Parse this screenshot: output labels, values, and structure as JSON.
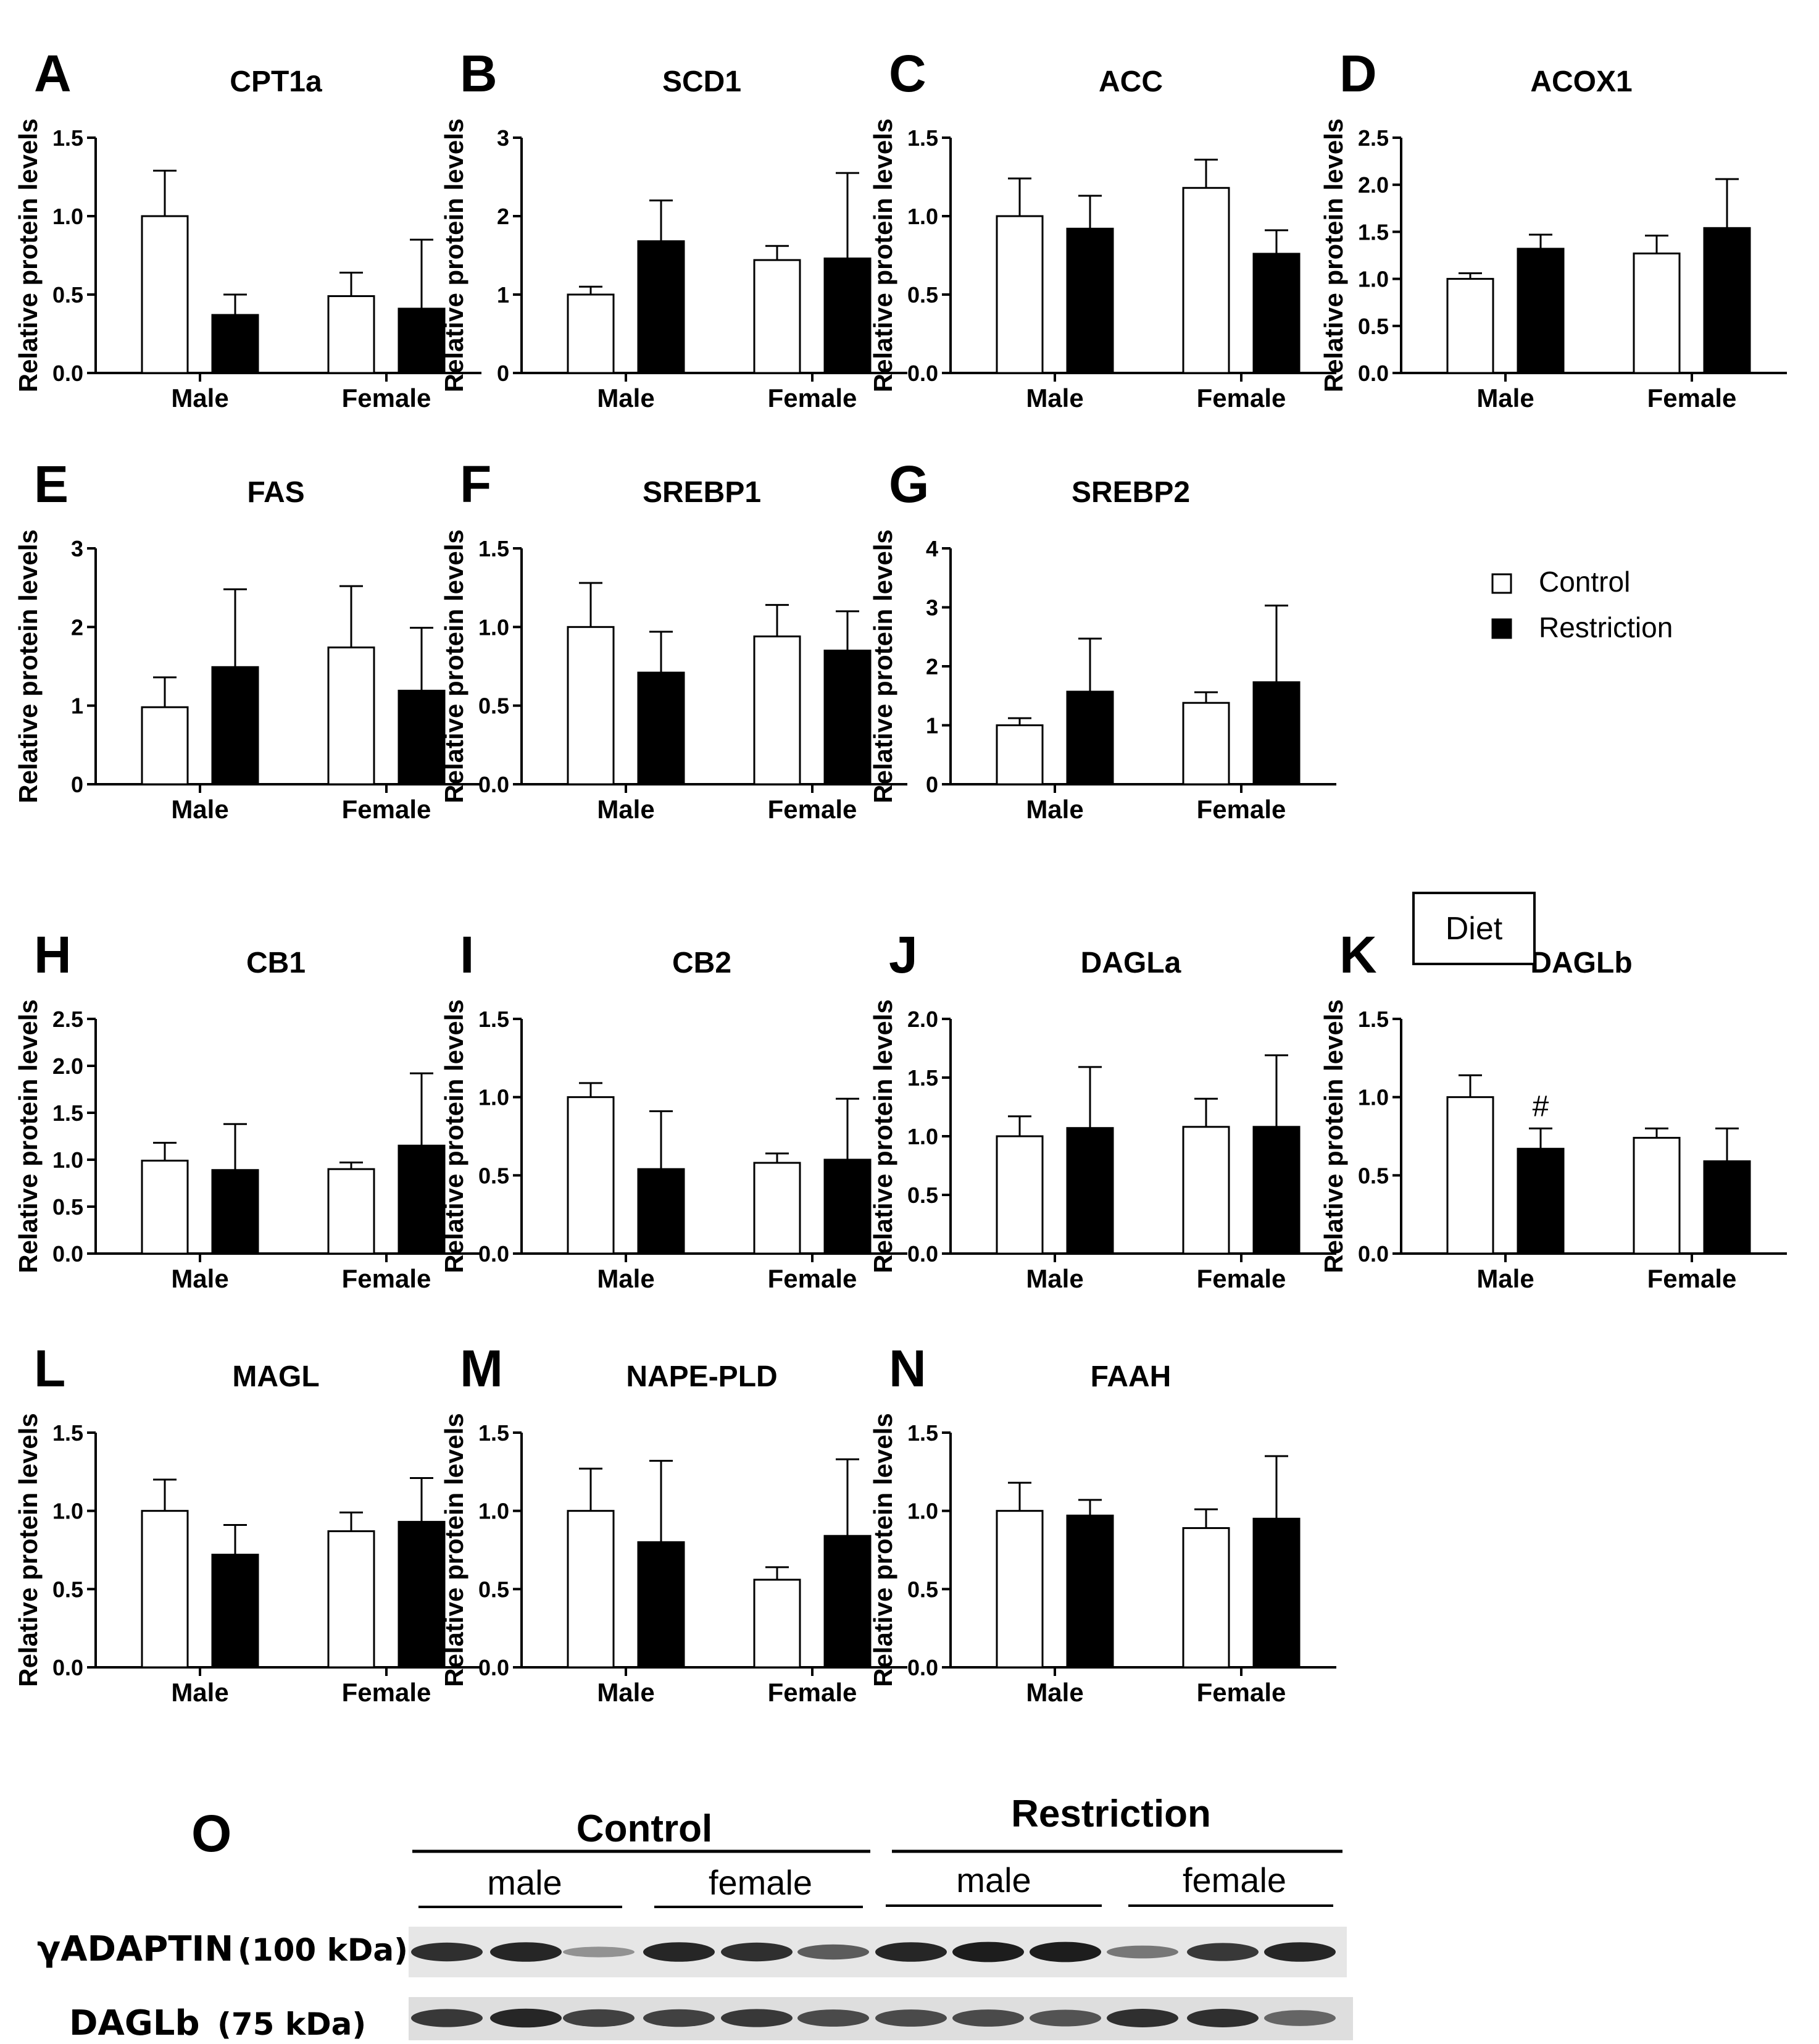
{
  "legend": {
    "control": "Control",
    "restriction": "Restriction",
    "placement": "right of panel G"
  },
  "diet_box": "Diet",
  "colors": {
    "control_fill": "#ffffff",
    "restriction_fill": "#000000",
    "stroke": "#000000"
  },
  "chart_data": [
    {
      "panel": "A",
      "type": "bar",
      "title": "CPT1a",
      "ylabel": "Relative protein levels",
      "categories": [
        "Male",
        "Female"
      ],
      "ylim": [
        0,
        1.5
      ],
      "ticks": [
        "0.0",
        "0.5",
        "1.0",
        "1.5"
      ],
      "series": [
        {
          "name": "Control",
          "values": [
            1.0,
            0.49
          ],
          "errors": [
            0.29,
            0.15
          ]
        },
        {
          "name": "Restriction",
          "values": [
            0.37,
            0.41
          ],
          "errors": [
            0.13,
            0.44
          ]
        }
      ]
    },
    {
      "panel": "B",
      "type": "bar",
      "title": "SCD1",
      "ylabel": "Relative protein levels",
      "categories": [
        "Male",
        "Female"
      ],
      "ylim": [
        0,
        3
      ],
      "ticks": [
        "0",
        "1",
        "2",
        "3"
      ],
      "series": [
        {
          "name": "Control",
          "values": [
            1.0,
            1.44
          ],
          "errors": [
            0.1,
            0.18
          ]
        },
        {
          "name": "Restriction",
          "values": [
            1.68,
            1.46
          ],
          "errors": [
            0.52,
            1.09
          ]
        }
      ]
    },
    {
      "panel": "C",
      "type": "bar",
      "title": "ACC",
      "ylabel": "Relative protein levels",
      "categories": [
        "Male",
        "Female"
      ],
      "ylim": [
        0,
        1.5
      ],
      "ticks": [
        "0.0",
        "0.5",
        "1.0",
        "1.5"
      ],
      "series": [
        {
          "name": "Control",
          "values": [
            1.0,
            1.18
          ],
          "errors": [
            0.24,
            0.18
          ]
        },
        {
          "name": "Restriction",
          "values": [
            0.92,
            0.76
          ],
          "errors": [
            0.21,
            0.15
          ]
        }
      ]
    },
    {
      "panel": "D",
      "type": "bar",
      "title": "ACOX1",
      "ylabel": "Relative protein levels",
      "categories": [
        "Male",
        "Female"
      ],
      "ylim": [
        0,
        2.5
      ],
      "ticks": [
        "0.0",
        "0.5",
        "1.0",
        "1.5",
        "2.0",
        "2.5"
      ],
      "series": [
        {
          "name": "Control",
          "values": [
            1.0,
            1.27
          ],
          "errors": [
            0.06,
            0.19
          ]
        },
        {
          "name": "Restriction",
          "values": [
            1.32,
            1.54
          ],
          "errors": [
            0.15,
            0.52
          ]
        }
      ]
    },
    {
      "panel": "E",
      "type": "bar",
      "title": "FAS",
      "ylabel": "Relative protein levels",
      "categories": [
        "Male",
        "Female"
      ],
      "ylim": [
        0,
        3
      ],
      "ticks": [
        "0",
        "1",
        "2",
        "3"
      ],
      "series": [
        {
          "name": "Control",
          "values": [
            0.98,
            1.74
          ],
          "errors": [
            0.38,
            0.78
          ]
        },
        {
          "name": "Restriction",
          "values": [
            1.49,
            1.19
          ],
          "errors": [
            0.99,
            0.8
          ]
        }
      ]
    },
    {
      "panel": "F",
      "type": "bar",
      "title": "SREBP1",
      "ylabel": "Relative protein levels",
      "categories": [
        "Male",
        "Female"
      ],
      "ylim": [
        0,
        1.5
      ],
      "ticks": [
        "0.0",
        "0.5",
        "1.0",
        "1.5"
      ],
      "series": [
        {
          "name": "Control",
          "values": [
            1.0,
            0.94
          ],
          "errors": [
            0.28,
            0.2
          ]
        },
        {
          "name": "Restriction",
          "values": [
            0.71,
            0.85
          ],
          "errors": [
            0.26,
            0.25
          ]
        }
      ]
    },
    {
      "panel": "G",
      "type": "bar",
      "title": "SREBP2",
      "ylabel": "Relative protein levels",
      "categories": [
        "Male",
        "Female"
      ],
      "ylim": [
        0,
        4
      ],
      "ticks": [
        "0",
        "1",
        "2",
        "3",
        "4"
      ],
      "series": [
        {
          "name": "Control",
          "values": [
            1.0,
            1.38
          ],
          "errors": [
            0.12,
            0.18
          ]
        },
        {
          "name": "Restriction",
          "values": [
            1.57,
            1.73
          ],
          "errors": [
            0.9,
            1.3
          ]
        }
      ]
    },
    {
      "panel": "H",
      "type": "bar",
      "title": "CB1",
      "ylabel": "Relative protein levels",
      "categories": [
        "Male",
        "Female"
      ],
      "ylim": [
        0,
        2.5
      ],
      "ticks": [
        "0.0",
        "0.5",
        "1.0",
        "1.5",
        "2.0",
        "2.5"
      ],
      "series": [
        {
          "name": "Control",
          "values": [
            0.99,
            0.9
          ],
          "errors": [
            0.19,
            0.07
          ]
        },
        {
          "name": "Restriction",
          "values": [
            0.89,
            1.15
          ],
          "errors": [
            0.49,
            0.77
          ]
        }
      ]
    },
    {
      "panel": "I",
      "type": "bar",
      "title": "CB2",
      "ylabel": "Relative protein levels",
      "categories": [
        "Male",
        "Female"
      ],
      "ylim": [
        0,
        1.5
      ],
      "ticks": [
        "0.0",
        "0.5",
        "1.0",
        "1.5"
      ],
      "series": [
        {
          "name": "Control",
          "values": [
            1.0,
            0.58
          ],
          "errors": [
            0.09,
            0.06
          ]
        },
        {
          "name": "Restriction",
          "values": [
            0.54,
            0.6
          ],
          "errors": [
            0.37,
            0.39
          ]
        }
      ]
    },
    {
      "panel": "J",
      "type": "bar",
      "title": "DAGLa",
      "ylabel": "Relative protein levels",
      "categories": [
        "Male",
        "Female"
      ],
      "ylim": [
        0,
        2.0
      ],
      "ticks": [
        "0.0",
        "0.5",
        "1.0",
        "1.5",
        "2.0"
      ],
      "series": [
        {
          "name": "Control",
          "values": [
            1.0,
            1.08
          ],
          "errors": [
            0.17,
            0.24
          ]
        },
        {
          "name": "Restriction",
          "values": [
            1.07,
            1.08
          ],
          "errors": [
            0.52,
            0.61
          ]
        }
      ]
    },
    {
      "panel": "K",
      "type": "bar",
      "title": "DAGLb",
      "ylabel": "Relative protein levels",
      "categories": [
        "Male",
        "Female"
      ],
      "ylim": [
        0,
        1.5
      ],
      "ticks": [
        "0.0",
        "0.5",
        "1.0",
        "1.5"
      ],
      "annotation": "#",
      "series": [
        {
          "name": "Control",
          "values": [
            1.0,
            0.74
          ],
          "errors": [
            0.14,
            0.06
          ]
        },
        {
          "name": "Restriction",
          "values": [
            0.67,
            0.59
          ],
          "errors": [
            0.13,
            0.21
          ]
        }
      ]
    },
    {
      "panel": "L",
      "type": "bar",
      "title": "MAGL",
      "ylabel": "Relative protein levels",
      "categories": [
        "Male",
        "Female"
      ],
      "ylim": [
        0,
        1.5
      ],
      "ticks": [
        "0.0",
        "0.5",
        "1.0",
        "1.5"
      ],
      "series": [
        {
          "name": "Control",
          "values": [
            1.0,
            0.87
          ],
          "errors": [
            0.2,
            0.12
          ]
        },
        {
          "name": "Restriction",
          "values": [
            0.72,
            0.93
          ],
          "errors": [
            0.19,
            0.28
          ]
        }
      ]
    },
    {
      "panel": "M",
      "type": "bar",
      "title": "NAPE-PLD",
      "ylabel": "Relative protein levels",
      "categories": [
        "Male",
        "Female"
      ],
      "ylim": [
        0,
        1.5
      ],
      "ticks": [
        "0.0",
        "0.5",
        "1.0",
        "1.5"
      ],
      "series": [
        {
          "name": "Control",
          "values": [
            1.0,
            0.56
          ],
          "errors": [
            0.27,
            0.08
          ]
        },
        {
          "name": "Restriction",
          "values": [
            0.8,
            0.84
          ],
          "errors": [
            0.52,
            0.49
          ]
        }
      ]
    },
    {
      "panel": "N",
      "type": "bar",
      "title": "FAAH",
      "ylabel": "Relative protein levels",
      "categories": [
        "Male",
        "Female"
      ],
      "ylim": [
        0,
        1.5
      ],
      "ticks": [
        "0.0",
        "0.5",
        "1.0",
        "1.5"
      ],
      "series": [
        {
          "name": "Control",
          "values": [
            1.0,
            0.89
          ],
          "errors": [
            0.18,
            0.12
          ]
        },
        {
          "name": "Restriction",
          "values": [
            0.97,
            0.95
          ],
          "errors": [
            0.1,
            0.4
          ]
        }
      ]
    }
  ],
  "blot": {
    "panel": "O",
    "groups": [
      {
        "label": "Control",
        "subgroups": [
          "male",
          "female"
        ]
      },
      {
        "label": "Restriction",
        "subgroups": [
          "male",
          "female"
        ]
      }
    ],
    "rows": [
      {
        "protein": "γADAPTIN",
        "size": "(100 kDa)",
        "band_intensity": [
          0.85,
          0.9,
          0.3,
          0.9,
          0.85,
          0.6,
          0.9,
          0.95,
          0.95,
          0.45,
          0.8,
          0.9
        ]
      },
      {
        "protein": "DAGLb",
        "size": "(75 kDa)",
        "band_intensity": [
          0.8,
          0.9,
          0.75,
          0.75,
          0.8,
          0.7,
          0.7,
          0.7,
          0.65,
          0.85,
          0.85,
          0.55
        ]
      }
    ]
  }
}
